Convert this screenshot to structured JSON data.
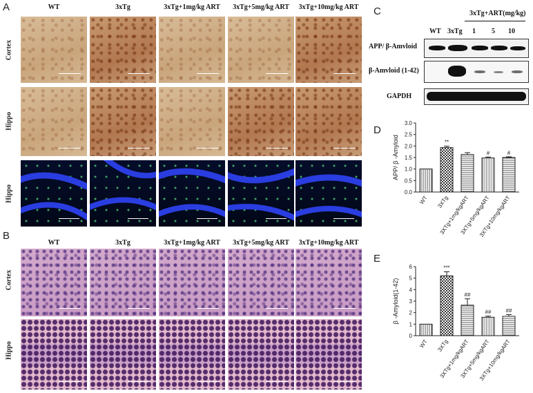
{
  "panels": {
    "A": "A",
    "B": "B",
    "C": "C",
    "D": "D",
    "E": "E"
  },
  "columns": [
    "WT",
    "3xTg",
    "3xTg+1mg/kg ART",
    "3xTg+5mg/kg ART",
    "3xTg+10mg/kg ART"
  ],
  "rows_A": [
    "Cortex",
    "Hippo",
    "Hippo"
  ],
  "rows_B": [
    "Cortex",
    "Hippo"
  ],
  "western_blot": {
    "lane_labels": [
      "WT",
      "3xTg",
      "1",
      "5",
      "10"
    ],
    "group_label": "3xTg+ART(mg/kg)",
    "bands": [
      "APP/ β-Amvloid",
      "β-Amvloid (1-42)",
      "GAPDH"
    ]
  },
  "chart_data": [
    {
      "type": "bar",
      "panel": "D",
      "categories": [
        "WT",
        "3XTg",
        "3XTg+1mg/kgART",
        "3XTg+5mg/kgART",
        "3XTg+10mg/kgART"
      ],
      "values": [
        1.0,
        1.93,
        1.63,
        1.48,
        1.5
      ],
      "errors": [
        0.0,
        0.06,
        0.08,
        0.04,
        0.03
      ],
      "significance": [
        "",
        "**",
        "",
        "#",
        "#"
      ],
      "ylabel": "APP/ β -Amyloid",
      "ylim": [
        0,
        3.0
      ],
      "yticks": [
        "0.0",
        "0.5",
        "1.0",
        "1.5",
        "2.0",
        "2.5",
        "3.0"
      ]
    },
    {
      "type": "bar",
      "panel": "E",
      "categories": [
        "WT",
        "3XTg",
        "3XTg+1mg/kgART",
        "3XTg+5mg/kgART",
        "3XTg+10mg/kgART"
      ],
      "values": [
        1.0,
        5.2,
        2.65,
        1.6,
        1.68
      ],
      "errors": [
        0.0,
        0.35,
        0.55,
        0.1,
        0.15
      ],
      "significance": [
        "",
        "***",
        "##",
        "##",
        "##"
      ],
      "ylabel": "β -Amyloid(1-42)",
      "ylim": [
        0,
        6
      ],
      "yticks": [
        "0",
        "1",
        "2",
        "3",
        "4",
        "5",
        "6"
      ]
    }
  ]
}
